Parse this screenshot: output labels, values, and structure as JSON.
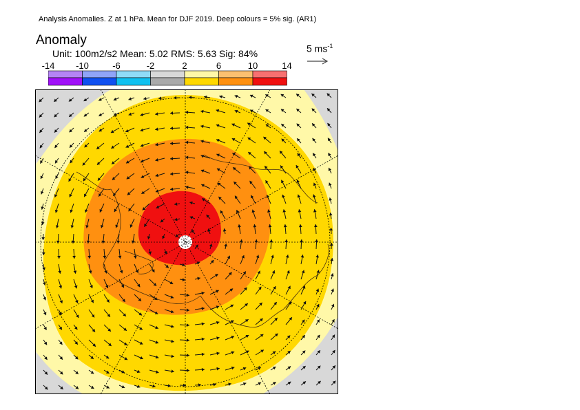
{
  "header": {
    "title": "Analysis Anomalies. Z at 1 hPa. Mean for DJF 2019.  Deep colours = 5% sig. (AR1)",
    "heading": "Anomaly",
    "stats": "Unit: 100m2/s2  Mean: 5.02  RMS: 5.63  Sig: 84%"
  },
  "reference_vector": {
    "label": "5 ms",
    "exponent": "-1"
  },
  "colorbar": {
    "ticks": [
      "-14",
      "-10",
      "-6",
      "-2",
      "2",
      "6",
      "10",
      "14"
    ],
    "light_colors": [
      "#b484f4",
      "#90a4f8",
      "#90dcf8",
      "#d8d8d8",
      "#fff8a8",
      "#fcc070",
      "#f87070"
    ],
    "deep_colors": [
      "#a010f8",
      "#1050f0",
      "#10c0f0",
      "#aaaaaa",
      "#ffd800",
      "#ff9010",
      "#f01010"
    ]
  },
  "map": {
    "projection": "north polar stereographic",
    "field": "Z anomaly with wind anomaly vectors",
    "colors": {
      "outer": "#fff8a8",
      "band_2_6": "#ffd800",
      "band_6_10": "#ff9010",
      "band_10_14": "#f01010",
      "negative": "#d8d8d8",
      "coast": "#4a3010"
    }
  }
}
